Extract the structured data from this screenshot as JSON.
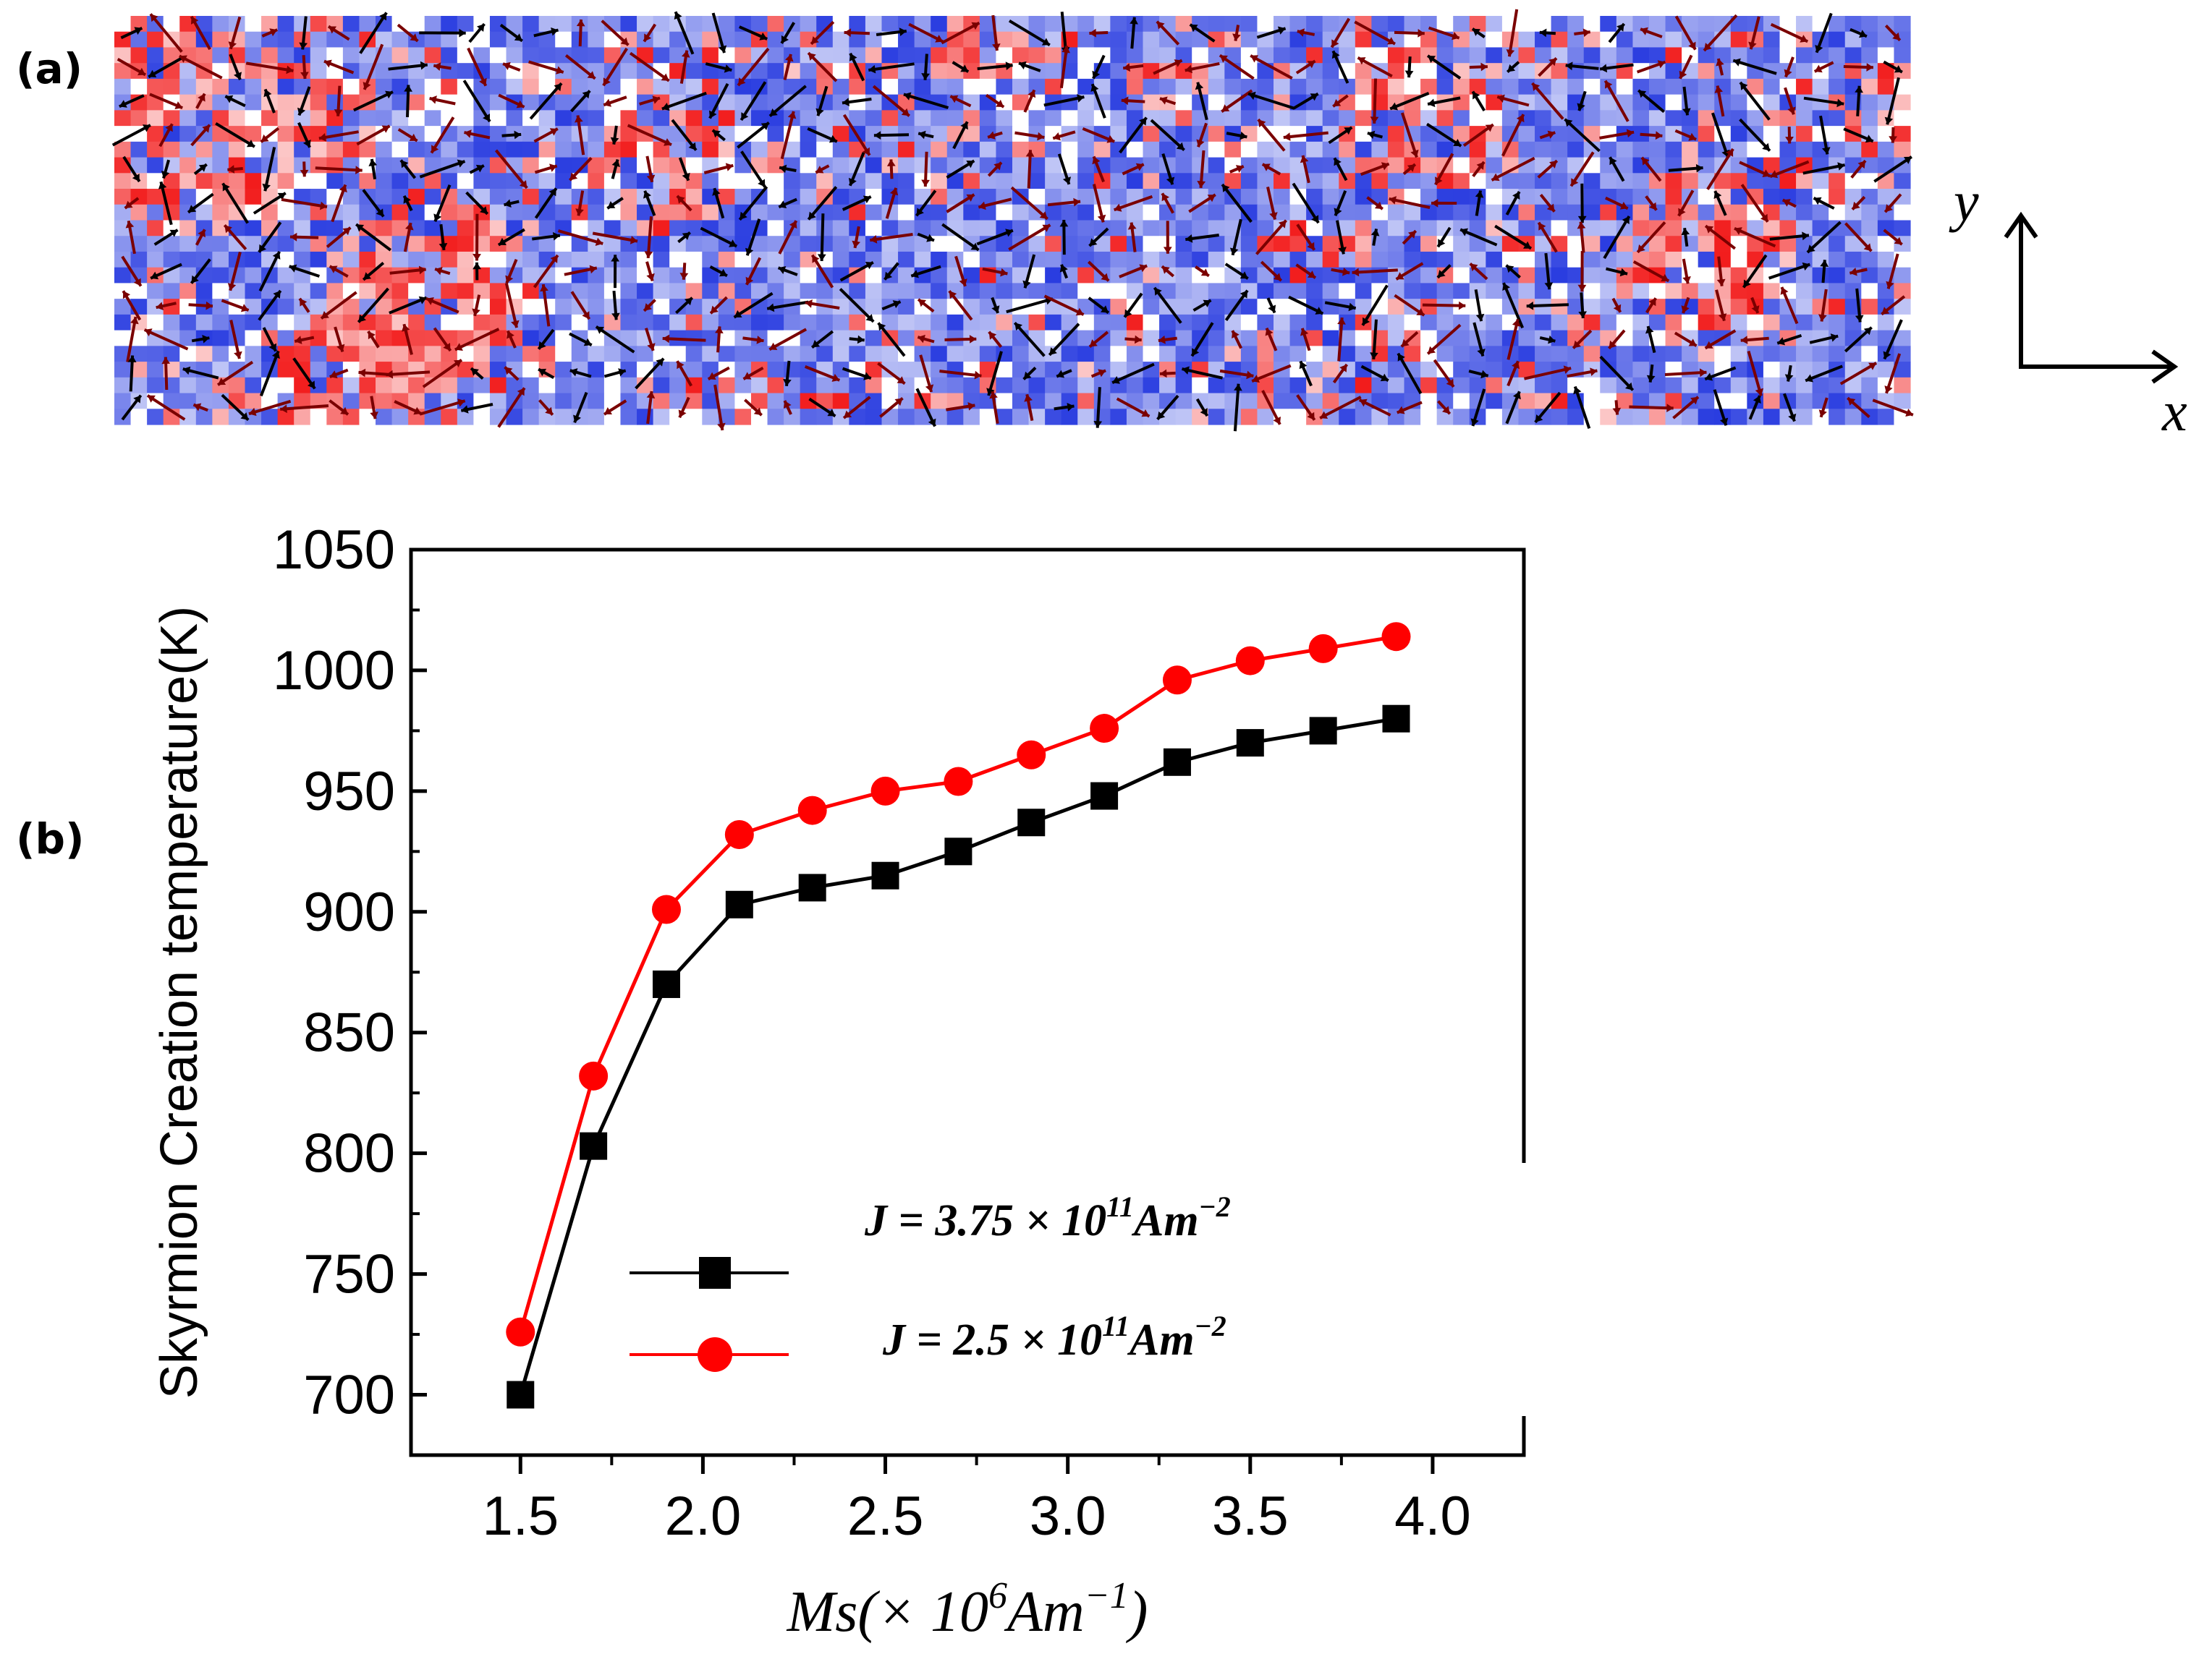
{
  "panels": {
    "a_label": "(a)",
    "b_label": "(b)"
  },
  "spin_map": {
    "colors": {
      "up": "#2a3de0",
      "down": "#f21c1c",
      "neutral": "#ffffff",
      "arrow_dark": "#7a0000",
      "arrow_black": "#000000"
    }
  },
  "axes_indicator": {
    "x_label": "x",
    "y_label": "y"
  },
  "chart_data": {
    "type": "line",
    "title": "",
    "xlabel": "Ms(× 10⁶Am⁻¹)",
    "xlabel_parts": {
      "base": "Ms(× 10",
      "exp1": "6",
      "mid": "Am",
      "exp2": "−1",
      "end": ")"
    },
    "ylabel": "Skyrmion Creation temperature(K)",
    "xlim": [
      1.2,
      4.25
    ],
    "ylim": [
      675,
      1050
    ],
    "xticks": [
      "1.5",
      "2.0",
      "2.5",
      "3.0",
      "3.5",
      "4.0"
    ],
    "yticks": [
      "700",
      "750",
      "800",
      "850",
      "900",
      "950",
      "1000",
      "1050"
    ],
    "x": [
      1.5,
      1.7,
      1.9,
      2.1,
      2.3,
      2.5,
      2.7,
      2.9,
      3.1,
      3.3,
      3.5,
      3.7,
      3.9
    ],
    "series": [
      {
        "name": "J = 3.75 × 10¹¹Am⁻²",
        "legend_parts": {
          "pre": "J = 3.75 × 10",
          "exp1": "11",
          "mid": "Am",
          "exp2": "−2"
        },
        "color": "#000000",
        "marker": "square",
        "values": [
          700,
          803,
          870,
          903,
          910,
          915,
          925,
          937,
          948,
          962,
          970,
          975,
          980
        ]
      },
      {
        "name": "J = 2.5 × 10¹¹Am⁻²",
        "legend_parts": {
          "pre": "J = 2.5 × 10",
          "exp1": "11",
          "mid": "Am",
          "exp2": "−2"
        },
        "color": "#ff0000",
        "marker": "circle",
        "values": [
          726,
          832,
          901,
          932,
          942,
          950,
          954,
          965,
          976,
          996,
          1004,
          1009,
          1014
        ]
      }
    ],
    "legend_position": "bottom-right",
    "grid": false
  }
}
